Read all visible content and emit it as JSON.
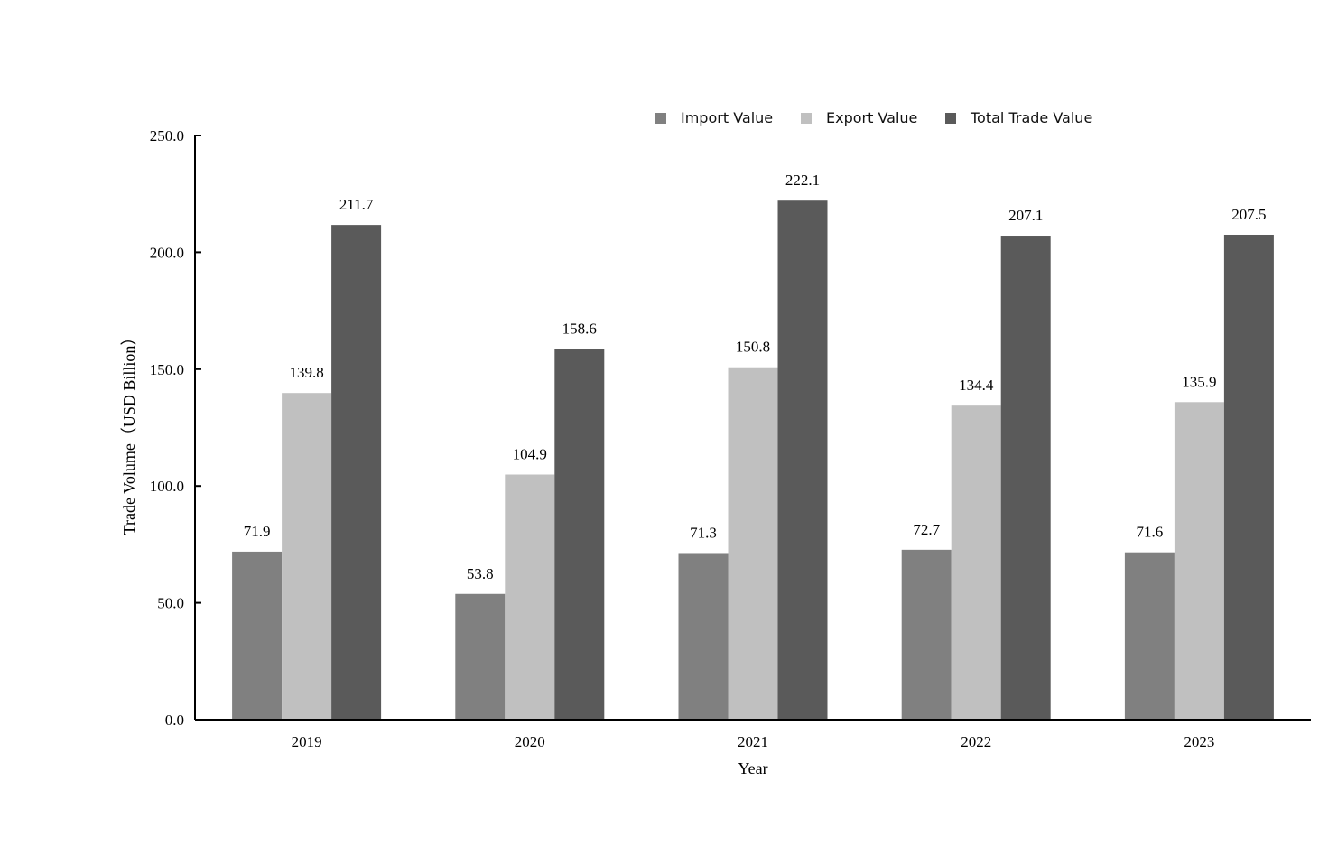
{
  "chart_data": {
    "type": "bar",
    "categories": [
      "2019",
      "2020",
      "2021",
      "2022",
      "2023"
    ],
    "series": [
      {
        "name": "Import Value",
        "color": "#808080",
        "values": [
          71.9,
          53.8,
          71.3,
          72.7,
          71.6
        ]
      },
      {
        "name": "Export Value",
        "color": "#c0c0c0",
        "values": [
          139.8,
          104.9,
          150.8,
          134.4,
          135.9
        ]
      },
      {
        "name": "Total Trade Value",
        "color": "#5a5a5a",
        "values": [
          211.7,
          158.6,
          222.1,
          207.1,
          207.5
        ]
      }
    ],
    "data_labels": [
      [
        "71.9",
        "53.8",
        "71.3",
        "72.7",
        "71.6"
      ],
      [
        "139.8",
        "104.9",
        "150.8",
        "134.4",
        "135.9"
      ],
      [
        "211.7",
        "158.6",
        "222.1",
        "207.1",
        "207.5"
      ]
    ],
    "xlabel": "Year",
    "ylabel": "Trade Volume（USD Billion）",
    "ylim": [
      0,
      250
    ],
    "yticks": [
      0,
      50,
      100,
      150,
      200,
      250
    ],
    "ytick_labels": [
      "0.0",
      "50.0",
      "100.0",
      "150.0",
      "200.0",
      "250.0"
    ],
    "grid": false,
    "legend_position": "top-right"
  }
}
